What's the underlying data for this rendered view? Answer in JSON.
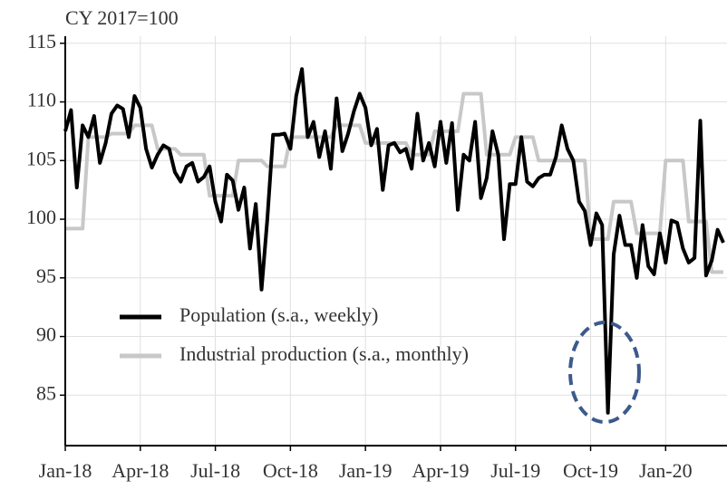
{
  "chart_data": {
    "type": "line",
    "title": "CY 2017=100",
    "categories": [
      "Jan-18",
      null,
      null,
      null,
      null,
      null,
      null,
      null,
      null,
      null,
      null,
      null,
      null,
      "Apr-18",
      null,
      null,
      null,
      null,
      null,
      null,
      null,
      null,
      null,
      null,
      null,
      null,
      "Jul-18",
      null,
      null,
      null,
      null,
      null,
      null,
      null,
      null,
      null,
      null,
      null,
      null,
      "Oct-18",
      null,
      null,
      null,
      null,
      null,
      null,
      null,
      null,
      null,
      null,
      null,
      null,
      "Jan-19",
      null,
      null,
      null,
      null,
      null,
      null,
      null,
      null,
      null,
      null,
      null,
      null,
      "Apr-19",
      null,
      null,
      null,
      null,
      null,
      null,
      null,
      null,
      null,
      null,
      null,
      null,
      "Jul-19",
      null,
      null,
      null,
      null,
      null,
      null,
      null,
      null,
      null,
      null,
      null,
      null,
      "Oct-19",
      null,
      null,
      null,
      null,
      null,
      null,
      null,
      null,
      null,
      null,
      null,
      null,
      "Jan-20",
      null,
      null,
      null,
      null,
      null,
      null,
      null,
      null,
      null,
      null
    ],
    "series": [
      {
        "name": "Population (s.a., weekly)",
        "color": "#000000",
        "values": [
          107.5,
          109.3,
          102.7,
          108,
          107,
          108.8,
          104.8,
          106.5,
          109,
          109.7,
          109.4,
          107,
          110.5,
          109.5,
          106,
          104.4,
          105.5,
          106.3,
          106,
          104,
          103.2,
          104.5,
          104.8,
          103.2,
          103.6,
          104.5,
          101.5,
          99.8,
          103.8,
          103.3,
          100.8,
          102.7,
          97.5,
          101.3,
          94,
          100,
          107.2,
          107.2,
          107.3,
          106,
          110.5,
          112.8,
          107,
          108.3,
          105.3,
          107.5,
          104.3,
          110.3,
          105.8,
          107.3,
          109.2,
          110.7,
          109.5,
          106.3,
          107.7,
          102.5,
          106.3,
          106.5,
          105.7,
          106,
          104.3,
          109,
          105,
          106.5,
          104.5,
          108.3,
          104.8,
          108.2,
          100.8,
          105.5,
          105,
          108.3,
          101.8,
          103.5,
          107.5,
          105.5,
          98.3,
          103,
          103,
          107,
          103.2,
          102.8,
          103.5,
          103.8,
          103.8,
          105.3,
          108,
          106,
          105,
          101.5,
          100.7,
          97.8,
          100.5,
          99.5,
          83.5,
          97,
          100.3,
          97.8,
          97.8,
          95,
          99.5,
          96,
          95.3,
          98.8,
          96.3,
          99.9,
          99.7,
          97.5,
          96.3,
          96.7,
          108.4,
          95.2,
          96.5,
          99.1,
          98
        ]
      },
      {
        "name": "Industrial production (s.a., monthly)",
        "color": "#c8c8c8",
        "values": [
          99.2,
          99.2,
          99.2,
          99.2,
          107,
          107,
          107,
          107,
          107.3,
          107.3,
          107.3,
          107.3,
          108,
          108,
          108,
          108,
          106,
          106,
          106,
          106,
          105.5,
          105.5,
          105.5,
          105.5,
          105.5,
          102,
          102,
          102,
          102,
          102,
          105,
          105,
          105,
          105,
          105,
          104.5,
          104.5,
          104.5,
          104.5,
          107,
          107,
          107,
          107,
          107,
          107,
          107,
          107,
          108,
          108,
          108,
          108,
          108,
          106.5,
          106.5,
          106.5,
          106.5,
          106.5,
          106.5,
          106.5,
          106.5,
          105.5,
          105.5,
          105.5,
          105.5,
          107.5,
          107.5,
          107.5,
          107.5,
          107.5,
          110.7,
          110.7,
          110.7,
          110.7,
          105.5,
          105.5,
          105.5,
          105.5,
          105.5,
          107,
          107,
          107,
          107,
          105,
          105,
          105,
          105,
          105,
          105,
          105,
          105,
          105,
          98.3,
          98.3,
          98.3,
          98.3,
          101.5,
          101.5,
          101.5,
          101.5,
          98.8,
          98.8,
          98.8,
          98.8,
          98.8,
          105,
          105,
          105,
          105,
          99.8,
          99.8,
          99.8,
          99.8,
          95.5,
          95.5,
          95.5
        ]
      }
    ],
    "ylim": [
      80.7,
      115.6
    ],
    "yticks": [
      85,
      90,
      95,
      100,
      105,
      110,
      115
    ],
    "grid": true
  }
}
